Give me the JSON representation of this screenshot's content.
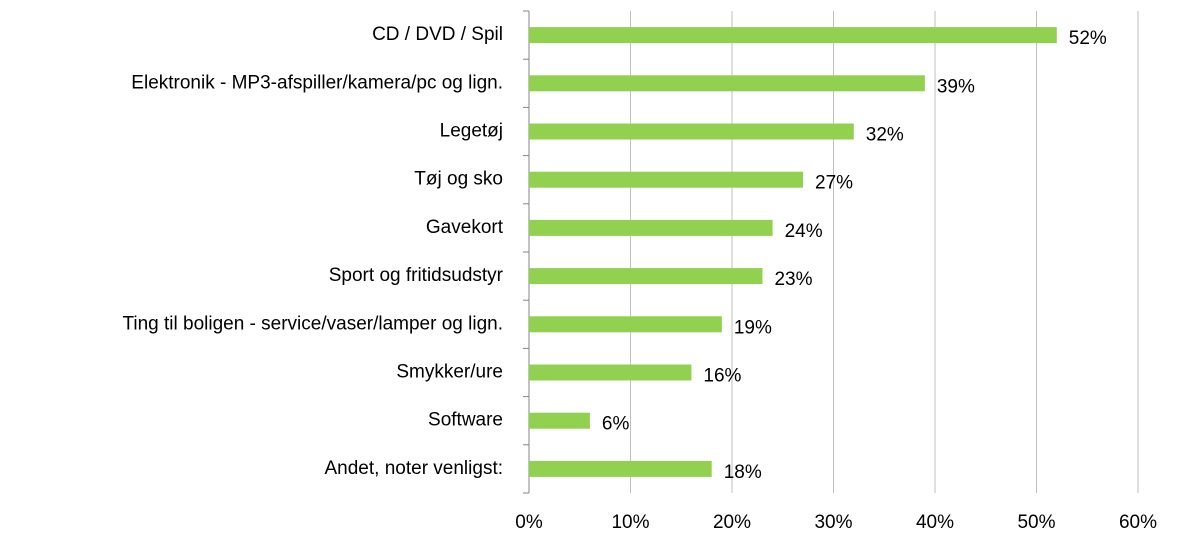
{
  "chart_data": {
    "type": "bar",
    "orientation": "horizontal",
    "categories": [
      "CD / DVD / Spil",
      "Elektronik - MP3-afspiller/kamera/pc og lign.",
      "Legetøj",
      "Tøj og sko",
      "Gavekort",
      "Sport og fritidsudstyr",
      "Ting til boligen - service/vaser/lamper og lign.",
      "Smykker/ure",
      "Software",
      "Andet, noter venligst:"
    ],
    "values": [
      52,
      39,
      32,
      27,
      24,
      23,
      19,
      16,
      6,
      18
    ],
    "value_labels": [
      "52%",
      "39%",
      "32%",
      "27%",
      "24%",
      "23%",
      "19%",
      "16%",
      "6%",
      "18%"
    ],
    "color": "#92d050",
    "xlim": [
      0,
      60
    ],
    "xticks": [
      {
        "value": 0,
        "label": "0%"
      },
      {
        "value": 10,
        "label": "10%"
      },
      {
        "value": 20,
        "label": "20%"
      },
      {
        "value": 30,
        "label": "30%"
      },
      {
        "value": 40,
        "label": "40%"
      },
      {
        "value": 50,
        "label": "50%"
      },
      {
        "value": 60,
        "label": "60%"
      }
    ],
    "grid": true
  }
}
